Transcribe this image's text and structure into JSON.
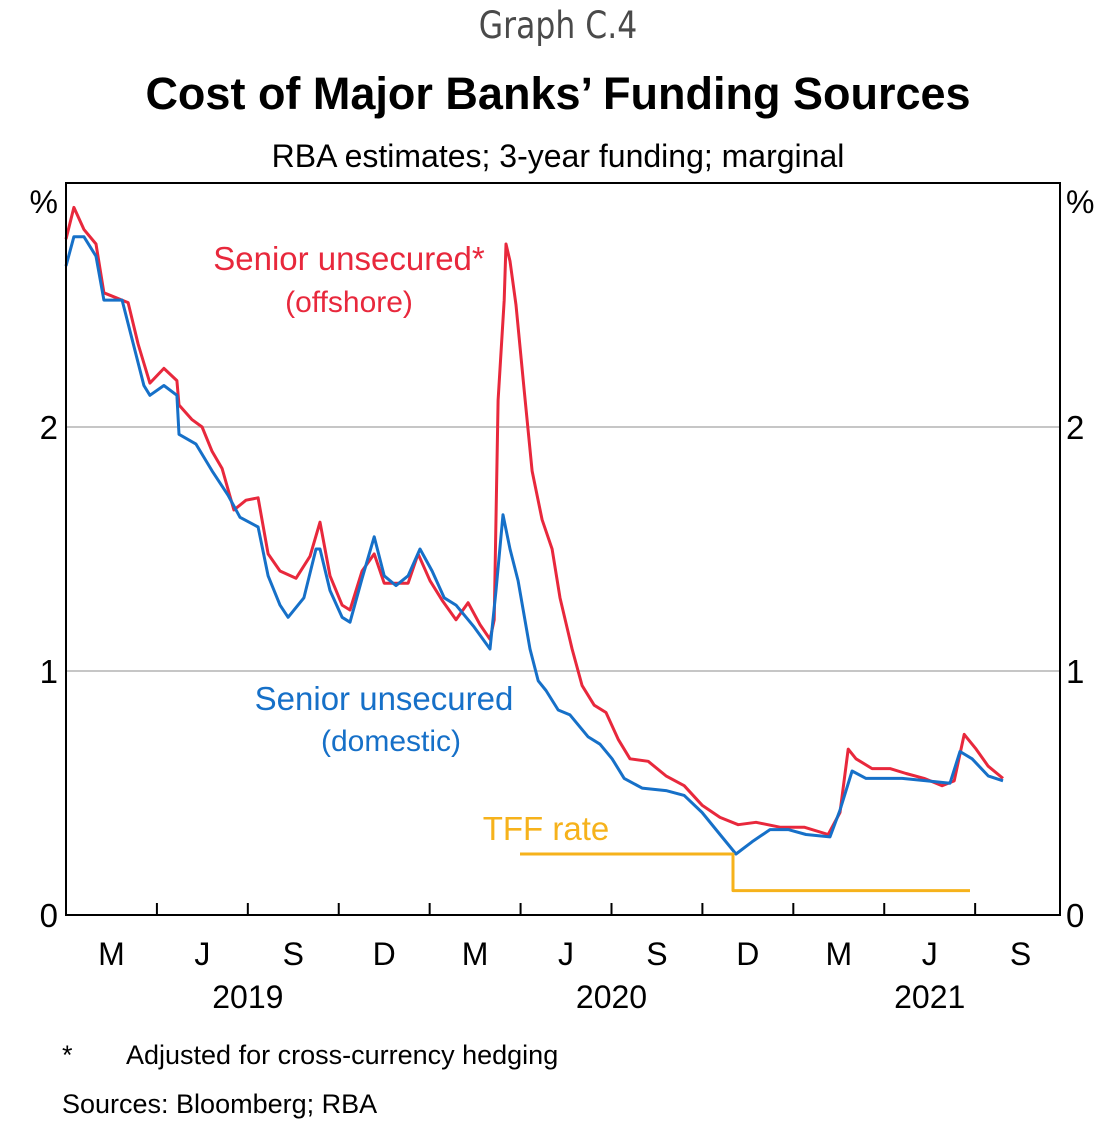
{
  "header": {
    "graph_number": "Graph C.4",
    "title": "Cost of Major Banks’ Funding Sources",
    "subtitle": "RBA estimates; 3-year funding; marginal"
  },
  "footer": {
    "note_marker": "*",
    "note_text": "Adjusted for cross-currency hedging",
    "sources": "Sources: Bloomberg; RBA"
  },
  "chart_data": {
    "type": "line",
    "title": "Cost of Major Banks’ Funding Sources",
    "subtitle": "RBA estimates; 3-year funding; marginal",
    "xlabel": "",
    "ylabel_left": "%",
    "ylabel_right": "%",
    "x_units": "months since 1 Feb 2019",
    "xlim": [
      0,
      32.8
    ],
    "ylim": [
      0,
      3
    ],
    "yticks": [
      0,
      1,
      2
    ],
    "gridlines_y": [
      1,
      2
    ],
    "x_tick_boundaries": [
      3,
      6,
      9,
      12,
      15,
      18,
      21,
      24,
      27,
      30
    ],
    "x_month_labels": [
      {
        "label": "M",
        "at": 1.5
      },
      {
        "label": "J",
        "at": 4.5
      },
      {
        "label": "S",
        "at": 7.5
      },
      {
        "label": "D",
        "at": 10.5
      },
      {
        "label": "M",
        "at": 13.5
      },
      {
        "label": "J",
        "at": 16.5
      },
      {
        "label": "S",
        "at": 19.5
      },
      {
        "label": "D",
        "at": 22.5
      },
      {
        "label": "M",
        "at": 25.5
      },
      {
        "label": "J",
        "at": 28.5
      },
      {
        "label": "S",
        "at": 31.5
      }
    ],
    "x_year_labels": [
      {
        "label": "2019",
        "at": 6.0
      },
      {
        "label": "2020",
        "at": 18.0
      },
      {
        "label": "2021",
        "at": 28.5
      }
    ],
    "series": [
      {
        "name": "Senior unsecured* (offshore)",
        "label_line1": "Senior unsecured*",
        "label_line2": "(offshore)",
        "color": "#e8283c",
        "points": [
          [
            0.0,
            2.77
          ],
          [
            0.26,
            2.9
          ],
          [
            0.59,
            2.81
          ],
          [
            0.99,
            2.75
          ],
          [
            1.25,
            2.55
          ],
          [
            1.65,
            2.53
          ],
          [
            2.05,
            2.51
          ],
          [
            2.38,
            2.34
          ],
          [
            2.77,
            2.18
          ],
          [
            3.23,
            2.24
          ],
          [
            3.66,
            2.19
          ],
          [
            3.73,
            2.09
          ],
          [
            4.16,
            2.03
          ],
          [
            4.49,
            2.0
          ],
          [
            4.82,
            1.9
          ],
          [
            5.15,
            1.83
          ],
          [
            5.54,
            1.66
          ],
          [
            5.94,
            1.7
          ],
          [
            6.34,
            1.71
          ],
          [
            6.67,
            1.48
          ],
          [
            7.06,
            1.41
          ],
          [
            7.59,
            1.38
          ],
          [
            8.05,
            1.47
          ],
          [
            8.38,
            1.61
          ],
          [
            8.71,
            1.39
          ],
          [
            9.11,
            1.27
          ],
          [
            9.37,
            1.25
          ],
          [
            9.77,
            1.41
          ],
          [
            10.17,
            1.48
          ],
          [
            10.5,
            1.36
          ],
          [
            10.89,
            1.36
          ],
          [
            11.29,
            1.36
          ],
          [
            11.62,
            1.48
          ],
          [
            12.01,
            1.37
          ],
          [
            12.41,
            1.29
          ],
          [
            12.87,
            1.21
          ],
          [
            13.27,
            1.28
          ],
          [
            13.66,
            1.19
          ],
          [
            13.99,
            1.13
          ],
          [
            14.13,
            1.21
          ],
          [
            14.26,
            2.11
          ],
          [
            14.46,
            2.52
          ],
          [
            14.52,
            2.75
          ],
          [
            14.65,
            2.68
          ],
          [
            14.85,
            2.5
          ],
          [
            15.12,
            2.15
          ],
          [
            15.38,
            1.82
          ],
          [
            15.71,
            1.62
          ],
          [
            16.04,
            1.5
          ],
          [
            16.3,
            1.3
          ],
          [
            16.7,
            1.09
          ],
          [
            17.03,
            0.94
          ],
          [
            17.43,
            0.86
          ],
          [
            17.82,
            0.83
          ],
          [
            18.22,
            0.72
          ],
          [
            18.61,
            0.64
          ],
          [
            19.21,
            0.63
          ],
          [
            19.8,
            0.57
          ],
          [
            20.4,
            0.53
          ],
          [
            20.99,
            0.45
          ],
          [
            21.58,
            0.4
          ],
          [
            22.18,
            0.37
          ],
          [
            22.77,
            0.38
          ],
          [
            23.56,
            0.36
          ],
          [
            24.36,
            0.36
          ],
          [
            25.15,
            0.33
          ],
          [
            25.54,
            0.42
          ],
          [
            25.81,
            0.68
          ],
          [
            26.07,
            0.64
          ],
          [
            26.6,
            0.6
          ],
          [
            27.19,
            0.6
          ],
          [
            27.72,
            0.58
          ],
          [
            28.32,
            0.56
          ],
          [
            28.91,
            0.53
          ],
          [
            29.31,
            0.55
          ],
          [
            29.64,
            0.74
          ],
          [
            30.03,
            0.68
          ],
          [
            30.43,
            0.61
          ],
          [
            30.92,
            0.56
          ]
        ]
      },
      {
        "name": "Senior unsecured (domestic)",
        "label_line1": "Senior unsecured",
        "label_line2": "(domestic)",
        "color": "#1670c8",
        "points": [
          [
            0.0,
            2.66
          ],
          [
            0.26,
            2.78
          ],
          [
            0.59,
            2.78
          ],
          [
            0.99,
            2.7
          ],
          [
            1.25,
            2.52
          ],
          [
            1.85,
            2.52
          ],
          [
            2.18,
            2.36
          ],
          [
            2.57,
            2.17
          ],
          [
            2.77,
            2.13
          ],
          [
            3.23,
            2.17
          ],
          [
            3.66,
            2.13
          ],
          [
            3.73,
            1.97
          ],
          [
            4.29,
            1.93
          ],
          [
            4.82,
            1.82
          ],
          [
            5.35,
            1.72
          ],
          [
            5.74,
            1.63
          ],
          [
            6.34,
            1.59
          ],
          [
            6.67,
            1.39
          ],
          [
            7.06,
            1.27
          ],
          [
            7.33,
            1.22
          ],
          [
            7.85,
            1.3
          ],
          [
            8.25,
            1.5
          ],
          [
            8.38,
            1.5
          ],
          [
            8.71,
            1.33
          ],
          [
            9.11,
            1.22
          ],
          [
            9.37,
            1.2
          ],
          [
            9.77,
            1.38
          ],
          [
            10.17,
            1.55
          ],
          [
            10.5,
            1.39
          ],
          [
            10.89,
            1.35
          ],
          [
            11.29,
            1.39
          ],
          [
            11.68,
            1.5
          ],
          [
            12.08,
            1.41
          ],
          [
            12.48,
            1.3
          ],
          [
            12.87,
            1.27
          ],
          [
            13.47,
            1.18
          ],
          [
            13.99,
            1.09
          ],
          [
            14.19,
            1.33
          ],
          [
            14.42,
            1.64
          ],
          [
            14.65,
            1.5
          ],
          [
            14.92,
            1.37
          ],
          [
            15.31,
            1.09
          ],
          [
            15.58,
            0.96
          ],
          [
            15.84,
            0.92
          ],
          [
            16.24,
            0.84
          ],
          [
            16.63,
            0.82
          ],
          [
            17.23,
            0.73
          ],
          [
            17.62,
            0.7
          ],
          [
            18.02,
            0.64
          ],
          [
            18.42,
            0.56
          ],
          [
            19.01,
            0.52
          ],
          [
            19.8,
            0.51
          ],
          [
            20.4,
            0.49
          ],
          [
            20.99,
            0.42
          ],
          [
            21.58,
            0.33
          ],
          [
            22.11,
            0.25
          ],
          [
            22.64,
            0.3
          ],
          [
            23.23,
            0.35
          ],
          [
            23.83,
            0.35
          ],
          [
            24.42,
            0.33
          ],
          [
            25.21,
            0.32
          ],
          [
            25.54,
            0.43
          ],
          [
            25.94,
            0.59
          ],
          [
            26.4,
            0.56
          ],
          [
            27.0,
            0.56
          ],
          [
            27.59,
            0.56
          ],
          [
            28.38,
            0.55
          ],
          [
            29.17,
            0.54
          ],
          [
            29.5,
            0.67
          ],
          [
            29.9,
            0.64
          ],
          [
            30.43,
            0.57
          ],
          [
            30.92,
            0.55
          ]
        ]
      },
      {
        "name": "TFF rate",
        "label_line1": "TFF rate",
        "label_line2": "",
        "color": "#f6b21b",
        "step": true,
        "points": [
          [
            14.98,
            0.25
          ],
          [
            22.01,
            0.25
          ],
          [
            22.01,
            0.1
          ],
          [
            29.83,
            0.1
          ]
        ]
      }
    ]
  }
}
